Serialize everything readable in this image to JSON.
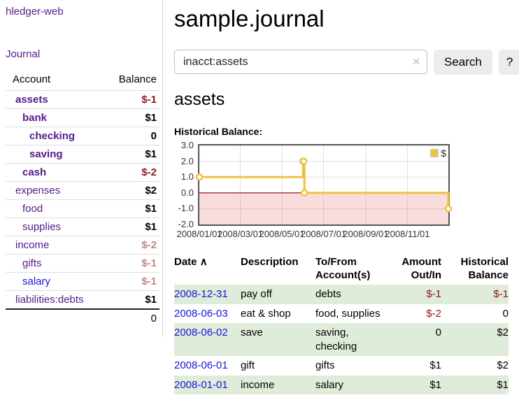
{
  "header": {
    "title": "sample.journal"
  },
  "search": {
    "query": "inacct:assets",
    "clear_icon": "✕",
    "button_label": "Search",
    "help_label": "?"
  },
  "main": {
    "account_heading": "assets"
  },
  "sidebar": {
    "brand": "hledger-web",
    "journal_link": "Journal",
    "accounts_header": {
      "account": "Account",
      "balance": "Balance"
    },
    "accounts": [
      {
        "name": "assets",
        "balance": "$-1",
        "level": 1,
        "bold": true,
        "neg": "strong"
      },
      {
        "name": "bank",
        "balance": "$1",
        "level": 2,
        "bold": true
      },
      {
        "name": "checking",
        "balance": "0",
        "level": 3,
        "bold": true
      },
      {
        "name": "saving",
        "balance": "$1",
        "level": 3,
        "bold": true
      },
      {
        "name": "cash",
        "balance": "$-2",
        "level": 2,
        "bold": true,
        "neg": "strong"
      },
      {
        "name": "expenses",
        "balance": "$2",
        "level": 1
      },
      {
        "name": "food",
        "balance": "$1",
        "level": 2
      },
      {
        "name": "supplies",
        "balance": "$1",
        "level": 2
      },
      {
        "name": "income",
        "balance": "$-2",
        "level": 1,
        "neg": "muted"
      },
      {
        "name": "gifts",
        "balance": "$-1",
        "level": 2,
        "neg": "muted"
      },
      {
        "name": "salary",
        "balance": "$-1",
        "level": 2,
        "neg": "muted",
        "link": "unvisited"
      },
      {
        "name": "liabilities:debts",
        "balance": "$1",
        "level": 1
      }
    ],
    "total_balance": "0"
  },
  "chart_data": {
    "type": "line",
    "step": true,
    "title": "Historical Balance:",
    "xlim": [
      "2008-01-01",
      "2008-12-31"
    ],
    "ylim": [
      -2.0,
      3.0
    ],
    "yticks": [
      3.0,
      2.0,
      1.0,
      0.0,
      -1.0,
      -2.0
    ],
    "xticks": [
      "2008/01/01",
      "2008/03/01",
      "2008/05/01",
      "2008/07/01",
      "2008/09/01",
      "2008/11/01"
    ],
    "grid": true,
    "legend_position": "top-right",
    "series": [
      {
        "name": "$",
        "color": "#edc240",
        "points": [
          {
            "x": "2008-01-01",
            "y": 1
          },
          {
            "x": "2008-06-01",
            "y": 2
          },
          {
            "x": "2008-06-02",
            "y": 2
          },
          {
            "x": "2008-06-03",
            "y": 0
          },
          {
            "x": "2008-12-31",
            "y": -1
          }
        ]
      }
    ],
    "negative_region_color": "#f9dcdc",
    "zero_line_color": "#990000"
  },
  "register": {
    "sort_icon": "∧",
    "columns": [
      {
        "label": "Date"
      },
      {
        "label": "Description"
      },
      {
        "label": "To/From Account(s)"
      },
      {
        "label": "Amount Out/In"
      },
      {
        "label": "Historical Balance"
      }
    ],
    "rows": [
      {
        "date": "2008-12-31",
        "description": "pay off",
        "accounts": "debts",
        "amount": "$-1",
        "balance": "$-1",
        "amount_negative": true,
        "balance_negative": true
      },
      {
        "date": "2008-06-03",
        "description": "eat & shop",
        "accounts": "food, supplies",
        "amount": "$-2",
        "balance": "0",
        "amount_negative": true
      },
      {
        "date": "2008-06-02",
        "description": "save",
        "accounts": "saving, checking",
        "amount": "0",
        "balance": "$2"
      },
      {
        "date": "2008-06-01",
        "description": "gift",
        "accounts": "gifts",
        "amount": "$1",
        "balance": "$2"
      },
      {
        "date": "2008-01-01",
        "description": "income",
        "accounts": "salary",
        "amount": "$1",
        "balance": "$1"
      }
    ]
  },
  "colors": {
    "link_visited": "#551a8b",
    "link_unvisited": "#1515dd",
    "negative_strong": "#8b1a1a",
    "negative_muted": "#c08484",
    "row_stripe_green": "#dfecd9",
    "chart_line": "#edc240",
    "chart_negative_fill": "#f9dcdc",
    "chart_zero_line": "#990000"
  }
}
